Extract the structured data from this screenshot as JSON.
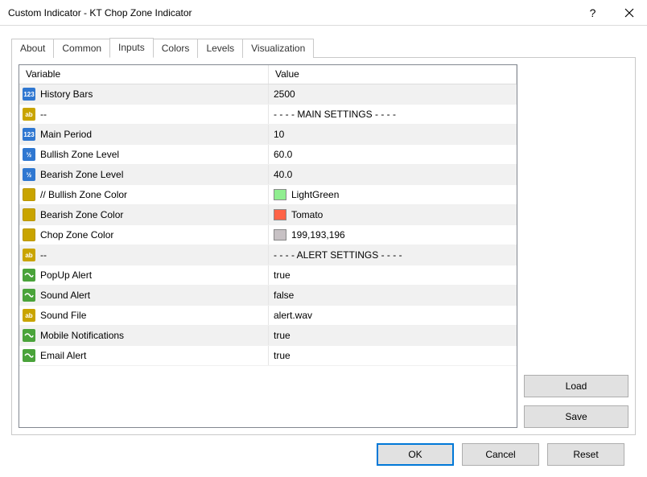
{
  "window": {
    "title": "Custom Indicator - KT Chop Zone Indicator"
  },
  "tabs": {
    "about": "About",
    "common": "Common",
    "inputs": "Inputs",
    "colors": "Colors",
    "levels": "Levels",
    "visualization": "Visualization",
    "active": "inputs"
  },
  "table": {
    "headers": {
      "variable": "Variable",
      "value": "Value"
    },
    "rows": [
      {
        "icon": "int",
        "name": "History Bars",
        "value": "2500"
      },
      {
        "icon": "str",
        "name": "--",
        "value": "- - - - MAIN SETTINGS - - - -"
      },
      {
        "icon": "int",
        "name": "Main Period",
        "value": "10"
      },
      {
        "icon": "dbl",
        "name": "Bullish Zone Level",
        "value": "60.0"
      },
      {
        "icon": "dbl",
        "name": "Bearish Zone Level",
        "value": "40.0"
      },
      {
        "icon": "clr",
        "name": "// Bullish Zone Color",
        "value": "LightGreen",
        "swatch": "#90ee90"
      },
      {
        "icon": "clr",
        "name": "Bearish Zone Color",
        "value": "Tomato",
        "swatch": "#ff6347"
      },
      {
        "icon": "clr",
        "name": "Chop Zone Color",
        "value": "199,193,196",
        "swatch": "#c7c1c4"
      },
      {
        "icon": "str",
        "name": "--",
        "value": "- - - - ALERT SETTINGS - - - -"
      },
      {
        "icon": "bool",
        "name": "PopUp Alert",
        "value": "true"
      },
      {
        "icon": "bool",
        "name": "Sound Alert",
        "value": "false"
      },
      {
        "icon": "str",
        "name": "Sound File",
        "value": "alert.wav"
      },
      {
        "icon": "bool",
        "name": "Mobile Notifications",
        "value": "true"
      },
      {
        "icon": "bool",
        "name": "Email Alert",
        "value": "true"
      }
    ]
  },
  "buttons": {
    "load": "Load",
    "save": "Save",
    "ok": "OK",
    "cancel": "Cancel",
    "reset": "Reset"
  },
  "icons": {
    "int": "123",
    "str": "ab",
    "dbl": "½"
  },
  "colors": {
    "row_alt": "#f1f1f1",
    "border": "#c9c9c9",
    "table_border": "#828790",
    "primary": "#0078d7"
  }
}
